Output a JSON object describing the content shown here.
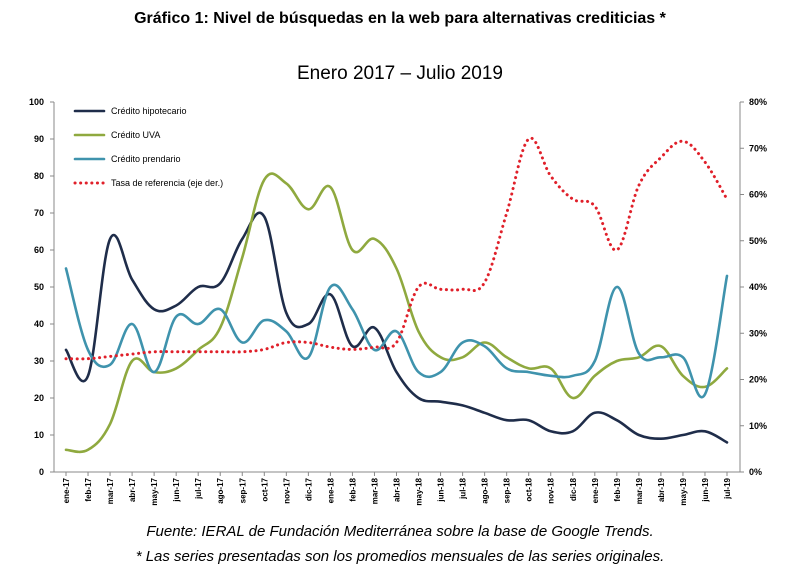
{
  "chart_data": {
    "type": "line",
    "title": "Gráfico 1: Nivel de búsquedas en la web para alternativas crediticias *",
    "subtitle": "Enero 2017 – Julio 2019",
    "source": "Fuente: IERAL de Fundación Mediterránea sobre la base de Google Trends.",
    "note": "* Las series presentadas son los promedios mensuales de las series originales.",
    "categories": [
      "ene-17",
      "feb-17",
      "mar-17",
      "abr-17",
      "may-17",
      "jun-17",
      "jul-17",
      "ago-17",
      "sep-17",
      "oct-17",
      "nov-17",
      "dic-17",
      "ene-18",
      "feb-18",
      "mar-18",
      "abr-18",
      "may-18",
      "jun-18",
      "jul-18",
      "ago-18",
      "sep-18",
      "oct-18",
      "nov-18",
      "dic-18",
      "ene-19",
      "feb-19",
      "mar-19",
      "abr-19",
      "may-19",
      "jun-19",
      "jul-19"
    ],
    "y_left": {
      "min": 0,
      "max": 100,
      "ticks": [
        "0",
        "10",
        "20",
        "30",
        "40",
        "50",
        "60",
        "70",
        "80",
        "90",
        "100"
      ]
    },
    "y_right": {
      "min": 0,
      "max": 80,
      "ticks": [
        "0%",
        "10%",
        "20%",
        "30%",
        "40%",
        "50%",
        "60%",
        "70%",
        "80%"
      ]
    },
    "series": [
      {
        "name": "Crédito hipotecario",
        "axis": "left",
        "color": "#1f2d4a",
        "style": "solid",
        "values": [
          33,
          26,
          63,
          52,
          44,
          45,
          50,
          51,
          63,
          69,
          43,
          40,
          48,
          34,
          39,
          27,
          20,
          19,
          18,
          16,
          14,
          14,
          11,
          11,
          16,
          14,
          10,
          9,
          10,
          11,
          8
        ]
      },
      {
        "name": "Crédito UVA",
        "axis": "left",
        "color": "#8fa93f",
        "style": "solid",
        "values": [
          6,
          6,
          13,
          30,
          27,
          28,
          33,
          39,
          58,
          79,
          78,
          71,
          77,
          60,
          63,
          55,
          38,
          31,
          31,
          35,
          31,
          28,
          28,
          20,
          26,
          30,
          31,
          34,
          26,
          23,
          28
        ]
      },
      {
        "name": "Crédito prendario",
        "axis": "left",
        "color": "#3f93ad",
        "style": "solid",
        "values": [
          55,
          33,
          29,
          40,
          27,
          42,
          40,
          44,
          35,
          41,
          38,
          31,
          50,
          44,
          33,
          38,
          27,
          27,
          35,
          34,
          28,
          27,
          26,
          26,
          30,
          50,
          32,
          31,
          31,
          21,
          53
        ]
      },
      {
        "name": "Tasa de referencia (eje der.)",
        "axis": "right",
        "color": "#e0202a",
        "style": "dotted",
        "values": [
          24.5,
          24.5,
          25,
          25.5,
          26,
          26,
          26,
          26,
          26,
          26.5,
          28,
          28,
          27,
          26.5,
          27,
          28,
          40,
          39.5,
          39.5,
          41,
          56,
          72,
          64,
          59,
          57.5,
          48,
          62,
          68,
          71.5,
          67,
          59
        ]
      }
    ]
  }
}
